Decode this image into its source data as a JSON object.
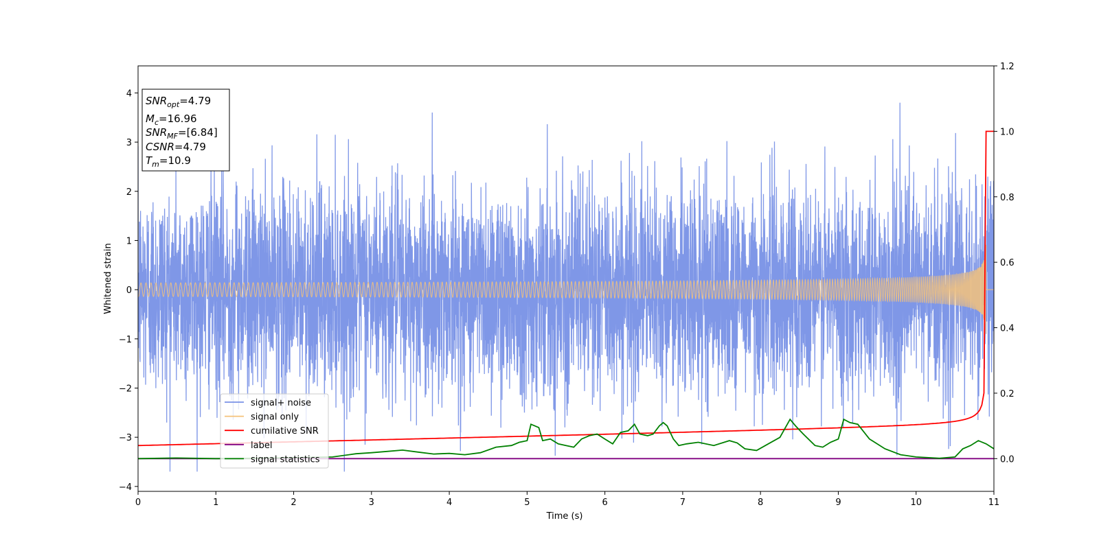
{
  "chart_data": {
    "type": "line",
    "xlabel": "Time (s)",
    "ylabel": "Whitened strain",
    "xlim": [
      0,
      11
    ],
    "ylim": [
      -4.1,
      4.55
    ],
    "y2lim": [
      -0.1,
      1.2
    ],
    "xticks": [
      "0",
      "1",
      "2",
      "3",
      "4",
      "5",
      "6",
      "7",
      "8",
      "9",
      "10",
      "11"
    ],
    "yticks": [
      "−4",
      "−3",
      "−2",
      "−1",
      "0",
      "1",
      "2",
      "3",
      "4"
    ],
    "y2ticks": [
      "0.0",
      "0.2",
      "0.4",
      "0.6",
      "0.8",
      "1.0",
      "1.2"
    ],
    "colors": {
      "noise": "#7891e6",
      "signal": "#f5c27a",
      "cumsnr": "#ff0000",
      "label": "#800080",
      "stat": "#008000"
    },
    "legend": {
      "placement": "lower-left",
      "entries": [
        {
          "label": "signal+ noise",
          "color": "#7891e6"
        },
        {
          "label": "signal only",
          "color": "#f5c27a"
        },
        {
          "label": "cumilative SNR",
          "color": "#ff0000"
        },
        {
          "label": "label",
          "color": "#800080"
        },
        {
          "label": "signal statistics",
          "color": "#008000"
        }
      ]
    },
    "annotation": [
      {
        "sym": "SNR",
        "sub": "opt",
        "val": "=4.79"
      },
      {
        "sym": "M",
        "sub": "c",
        "val": "=16.96"
      },
      {
        "sym": "SNR",
        "sub": "MF",
        "val": "=[6.84]"
      },
      {
        "sym": "CSNR",
        "sub": "",
        "val": "=4.79"
      },
      {
        "sym": "T",
        "sub": "m",
        "val": "=10.9"
      }
    ],
    "merger_time": 10.9,
    "signal_amp_max": 1.0,
    "series": [
      {
        "name": "signal statistics",
        "axis": "right",
        "x": [
          0,
          0.5,
          1,
          1.5,
          2,
          2.5,
          2.8,
          3,
          3.2,
          3.4,
          3.6,
          3.8,
          4,
          4.2,
          4.4,
          4.6,
          4.8,
          4.9,
          5.0,
          5.05,
          5.15,
          5.2,
          5.3,
          5.4,
          5.5,
          5.6,
          5.7,
          5.8,
          5.9,
          6.0,
          6.1,
          6.2,
          6.3,
          6.38,
          6.45,
          6.55,
          6.62,
          6.7,
          6.75,
          6.8,
          6.88,
          6.95,
          7.05,
          7.2,
          7.4,
          7.6,
          7.7,
          7.8,
          7.95,
          8.1,
          8.25,
          8.38,
          8.45,
          8.55,
          8.7,
          8.8,
          8.9,
          9.0,
          9.07,
          9.15,
          9.25,
          9.4,
          9.6,
          9.8,
          10.0,
          10.3,
          10.5,
          10.6,
          10.7,
          10.8,
          10.9,
          11.0
        ],
        "values": [
          0.0,
          0.002,
          0.0,
          0.001,
          0.003,
          0.005,
          0.015,
          0.018,
          0.022,
          0.026,
          0.02,
          0.014,
          0.016,
          0.012,
          0.018,
          0.035,
          0.04,
          0.05,
          0.055,
          0.105,
          0.095,
          0.055,
          0.06,
          0.045,
          0.04,
          0.035,
          0.06,
          0.07,
          0.075,
          0.06,
          0.045,
          0.08,
          0.085,
          0.105,
          0.075,
          0.07,
          0.075,
          0.1,
          0.11,
          0.1,
          0.06,
          0.04,
          0.045,
          0.05,
          0.04,
          0.055,
          0.048,
          0.03,
          0.025,
          0.045,
          0.065,
          0.12,
          0.1,
          0.075,
          0.04,
          0.035,
          0.05,
          0.06,
          0.12,
          0.11,
          0.105,
          0.06,
          0.03,
          0.012,
          0.005,
          0.001,
          0.005,
          0.03,
          0.04,
          0.055,
          0.045,
          0.03
        ]
      }
    ]
  }
}
